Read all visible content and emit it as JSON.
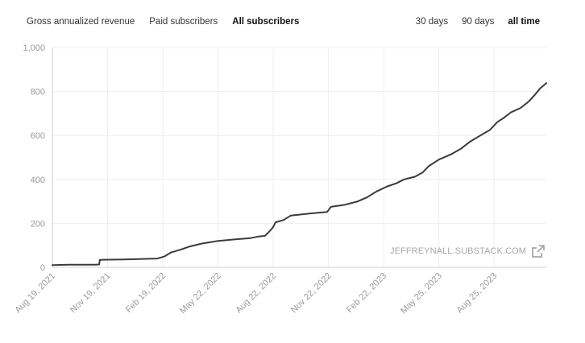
{
  "metric_tabs": [
    {
      "label": "Gross annualized revenue",
      "active": false
    },
    {
      "label": "Paid subscribers",
      "active": false
    },
    {
      "label": "All subscribers",
      "active": true
    }
  ],
  "range_tabs": [
    {
      "label": "30 days",
      "active": false
    },
    {
      "label": "90 days",
      "active": false
    },
    {
      "label": "all time",
      "active": true
    }
  ],
  "watermark": {
    "text": "JEFFREYNALL.SUBSTACK.COM",
    "icon": "external-link-icon"
  },
  "colors": {
    "line": "#3b3b3b",
    "grid": "#efefef",
    "axis": "#cfcfcf",
    "tick_text": "#9a9a9a"
  },
  "chart_data": {
    "type": "line",
    "title": "",
    "xlabel": "",
    "ylabel": "",
    "x_type": "date",
    "xlim": [
      "2021-08-19",
      "2023-11-20"
    ],
    "ylim": [
      0,
      1000
    ],
    "yticks": [
      0,
      200,
      400,
      600,
      800,
      1000
    ],
    "ytick_labels": [
      "0",
      "200",
      "400",
      "600",
      "800",
      "1,000"
    ],
    "xticks": [
      "2021-08-19",
      "2021-11-19",
      "2022-02-19",
      "2022-05-22",
      "2022-08-22",
      "2022-11-22",
      "2023-02-22",
      "2023-05-25",
      "2023-08-25"
    ],
    "xtick_labels": [
      "Aug 19, 2021",
      "Nov 19, 2021",
      "Feb 19, 2022",
      "May 22, 2022",
      "Aug 22, 2022",
      "Nov 22, 2022",
      "Feb 22, 2023",
      "May 25, 2023",
      "Aug 25, 2023"
    ],
    "grid": true,
    "series": [
      {
        "points": [
          [
            "2021-08-19",
            10
          ],
          [
            "2021-09-15",
            12
          ],
          [
            "2021-10-28",
            12
          ],
          [
            "2021-11-05",
            13
          ],
          [
            "2021-11-06",
            34
          ],
          [
            "2021-12-15",
            36
          ],
          [
            "2022-01-15",
            38
          ],
          [
            "2022-02-10",
            40
          ],
          [
            "2022-02-22",
            50
          ],
          [
            "2022-03-05",
            68
          ],
          [
            "2022-03-20",
            80
          ],
          [
            "2022-04-05",
            95
          ],
          [
            "2022-04-25",
            108
          ],
          [
            "2022-05-22",
            120
          ],
          [
            "2022-06-20",
            127
          ],
          [
            "2022-07-15",
            133
          ],
          [
            "2022-07-28",
            140
          ],
          [
            "2022-08-08",
            143
          ],
          [
            "2022-08-15",
            162
          ],
          [
            "2022-08-21",
            180
          ],
          [
            "2022-08-26",
            205
          ],
          [
            "2022-09-08",
            215
          ],
          [
            "2022-09-20",
            235
          ],
          [
            "2022-10-15",
            243
          ],
          [
            "2022-11-12",
            250
          ],
          [
            "2022-11-20",
            252
          ],
          [
            "2022-11-26",
            275
          ],
          [
            "2022-12-20",
            285
          ],
          [
            "2023-01-10",
            300
          ],
          [
            "2023-01-25",
            318
          ],
          [
            "2023-02-10",
            345
          ],
          [
            "2023-02-28",
            368
          ],
          [
            "2023-03-15",
            382
          ],
          [
            "2023-03-28",
            400
          ],
          [
            "2023-04-15",
            412
          ],
          [
            "2023-04-28",
            432
          ],
          [
            "2023-05-08",
            460
          ],
          [
            "2023-05-25",
            490
          ],
          [
            "2023-06-15",
            515
          ],
          [
            "2023-07-01",
            540
          ],
          [
            "2023-07-15",
            570
          ],
          [
            "2023-08-01",
            598
          ],
          [
            "2023-08-18",
            625
          ],
          [
            "2023-08-30",
            660
          ],
          [
            "2023-09-10",
            680
          ],
          [
            "2023-09-22",
            705
          ],
          [
            "2023-10-08",
            725
          ],
          [
            "2023-10-22",
            755
          ],
          [
            "2023-11-01",
            785
          ],
          [
            "2023-11-10",
            815
          ],
          [
            "2023-11-20",
            838
          ]
        ]
      }
    ]
  }
}
